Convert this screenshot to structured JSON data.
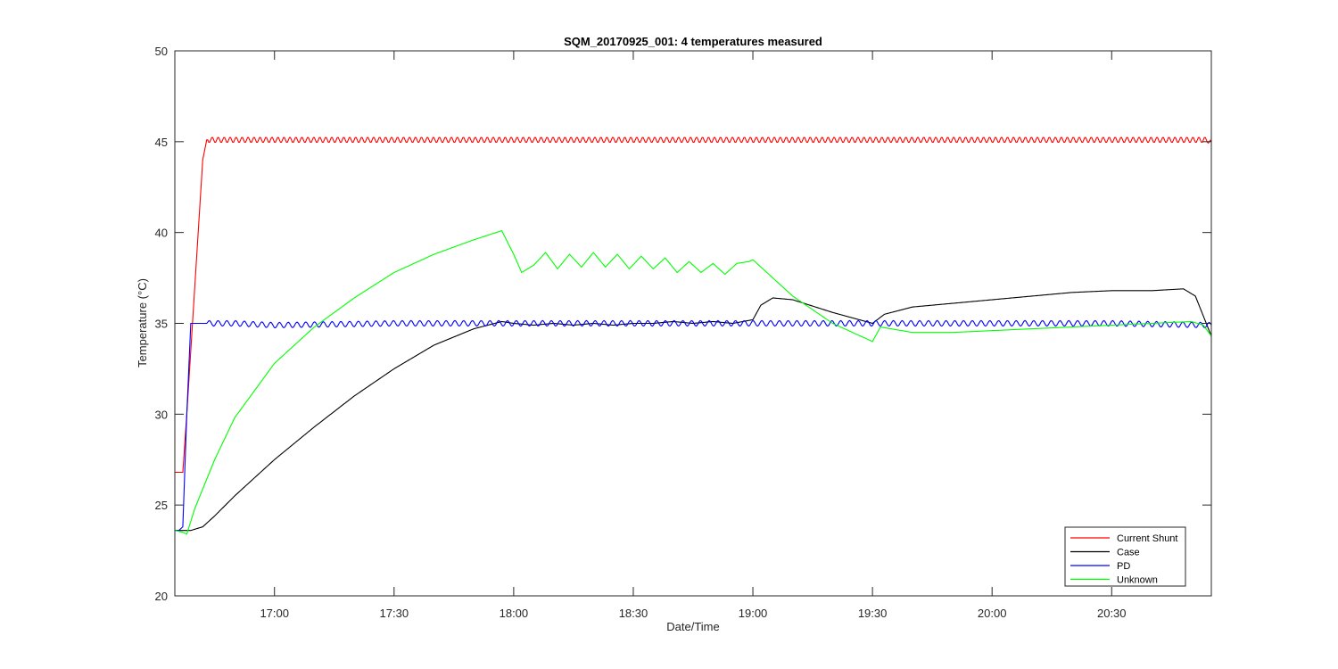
{
  "chart_data": {
    "type": "line",
    "title": "SQM_20170925_001: 4 temperatures measured",
    "xlabel": "Date/Time",
    "ylabel": "Temperature (°C)",
    "xlim": [
      "16:35",
      "20:55"
    ],
    "ylim": [
      20,
      50
    ],
    "x_ticks": [
      "17:00",
      "17:30",
      "18:00",
      "18:30",
      "19:00",
      "19:30",
      "20:00",
      "20:30"
    ],
    "y_ticks": [
      "20",
      "25",
      "30",
      "35",
      "40",
      "45",
      "50"
    ],
    "grid": false,
    "legend_position": "bottom-right",
    "series": [
      {
        "name": "Current Shunt",
        "color": "#ff0000",
        "x": [
          "16:35",
          "16:36",
          "16:37",
          "16:38",
          "16:39",
          "16:40",
          "16:41",
          "16:42",
          "16:43",
          "16:45",
          "17:00",
          "17:30",
          "18:00",
          "18:30",
          "19:00",
          "19:30",
          "20:00",
          "20:30",
          "20:54",
          "20:55"
        ],
        "y": [
          26.8,
          26.8,
          26.8,
          30.0,
          33.5,
          37.0,
          40.5,
          44.0,
          45.1,
          45.1,
          45.1,
          45.1,
          45.1,
          45.1,
          45.1,
          45.1,
          45.1,
          45.1,
          45.1,
          44.9
        ],
        "ripple": 0.15
      },
      {
        "name": "Case",
        "color": "#000000",
        "x": [
          "16:35",
          "16:37",
          "16:39",
          "16:42",
          "16:45",
          "16:50",
          "17:00",
          "17:10",
          "17:20",
          "17:30",
          "17:40",
          "17:50",
          "17:57",
          "18:00",
          "18:05",
          "18:10",
          "18:15",
          "18:20",
          "18:25",
          "18:30",
          "18:35",
          "18:40",
          "18:45",
          "18:50",
          "18:55",
          "19:00",
          "19:02",
          "19:05",
          "19:10",
          "19:20",
          "19:30",
          "19:33",
          "19:40",
          "19:50",
          "20:00",
          "20:10",
          "20:20",
          "20:30",
          "20:40",
          "20:48",
          "20:51",
          "20:55"
        ],
        "y": [
          23.6,
          23.6,
          23.6,
          23.8,
          24.4,
          25.5,
          27.5,
          29.3,
          31.0,
          32.5,
          33.8,
          34.7,
          35.1,
          35.0,
          34.9,
          35.0,
          34.9,
          35.0,
          34.9,
          35.0,
          35.0,
          35.1,
          35.0,
          35.1,
          35.0,
          35.2,
          36.0,
          36.4,
          36.3,
          35.6,
          35.0,
          35.5,
          35.9,
          36.1,
          36.3,
          36.5,
          36.7,
          36.8,
          36.8,
          36.9,
          36.5,
          34.3
        ]
      },
      {
        "name": "PD",
        "color": "#0000ff",
        "x": [
          "16:35",
          "16:36",
          "16:37",
          "16:38",
          "16:39",
          "16:45",
          "16:50",
          "17:00",
          "17:30",
          "18:00",
          "18:30",
          "19:00",
          "19:30",
          "20:00",
          "20:30",
          "20:55"
        ],
        "y": [
          23.6,
          23.6,
          23.8,
          30.0,
          35.0,
          35.0,
          35.0,
          34.9,
          35.0,
          35.0,
          35.0,
          35.0,
          35.0,
          35.0,
          35.0,
          34.9
        ],
        "ripple": 0.15
      },
      {
        "name": "Unknown",
        "color": "#00ff00",
        "x": [
          "16:35",
          "16:37",
          "16:38",
          "16:40",
          "16:45",
          "16:50",
          "17:00",
          "17:10",
          "17:20",
          "17:30",
          "17:40",
          "17:50",
          "17:57",
          "18:00",
          "18:02",
          "18:05",
          "18:08",
          "18:11",
          "18:14",
          "18:17",
          "18:20",
          "18:23",
          "18:26",
          "18:29",
          "18:32",
          "18:35",
          "18:38",
          "18:41",
          "18:44",
          "18:47",
          "18:50",
          "18:53",
          "18:56",
          "18:59",
          "19:00",
          "19:05",
          "19:10",
          "19:20",
          "19:30",
          "19:32",
          "19:40",
          "19:50",
          "20:00",
          "20:10",
          "20:20",
          "20:30",
          "20:40",
          "20:50",
          "20:53",
          "20:55"
        ],
        "y": [
          23.6,
          23.5,
          23.4,
          24.8,
          27.5,
          29.8,
          32.8,
          34.8,
          36.4,
          37.8,
          38.8,
          39.6,
          40.1,
          38.8,
          37.8,
          38.2,
          38.9,
          38.0,
          38.8,
          38.1,
          38.9,
          38.1,
          38.8,
          38.0,
          38.7,
          38.0,
          38.6,
          37.8,
          38.4,
          37.8,
          38.3,
          37.7,
          38.3,
          38.4,
          38.5,
          37.5,
          36.5,
          35.0,
          34.0,
          34.8,
          34.5,
          34.5,
          34.6,
          34.7,
          34.8,
          34.9,
          35.0,
          35.1,
          34.9,
          34.3
        ]
      }
    ]
  }
}
